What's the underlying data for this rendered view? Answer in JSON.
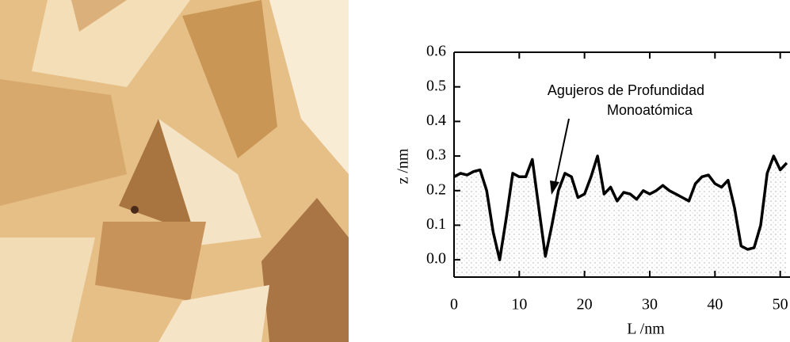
{
  "chart_data": {
    "type": "line",
    "annotation": [
      "Agujeros de Profundidad",
      "Monoatómica"
    ],
    "x_label": "L /nm",
    "y_label": "z /nm",
    "x": [
      0,
      1,
      2,
      3,
      4,
      5,
      6,
      7,
      8,
      9,
      10,
      11,
      12,
      13,
      14,
      15,
      16,
      17,
      18,
      19,
      20,
      21,
      22,
      23,
      24,
      25,
      26,
      27,
      28,
      29,
      30,
      31,
      32,
      33,
      34,
      35,
      36,
      37,
      38,
      39,
      40,
      41,
      42,
      43,
      44,
      45,
      46,
      47,
      48,
      49,
      50,
      51
    ],
    "series": [
      {
        "color": "#000000",
        "values": [
          0.24,
          0.25,
          0.245,
          0.255,
          0.26,
          0.2,
          0.08,
          0.0,
          0.12,
          0.25,
          0.24,
          0.24,
          0.29,
          0.15,
          0.01,
          0.1,
          0.2,
          0.25,
          0.24,
          0.18,
          0.19,
          0.24,
          0.3,
          0.19,
          0.21,
          0.17,
          0.195,
          0.19,
          0.175,
          0.2,
          0.19,
          0.2,
          0.215,
          0.2,
          0.19,
          0.18,
          0.17,
          0.22,
          0.24,
          0.245,
          0.22,
          0.21,
          0.23,
          0.15,
          0.04,
          0.03,
          0.035,
          0.1,
          0.25,
          0.3,
          0.26,
          0.28
        ]
      }
    ],
    "fill_below": true,
    "xlim": [
      0,
      51.5
    ],
    "ylim": [
      -0.05,
      0.6
    ],
    "xticks": [
      0,
      10,
      20,
      30,
      40,
      50
    ],
    "yticks": [
      {
        "value": 0,
        "label": "0.0"
      },
      0.1,
      0.2,
      0.3,
      0.4,
      0.5,
      0.6
    ]
  }
}
